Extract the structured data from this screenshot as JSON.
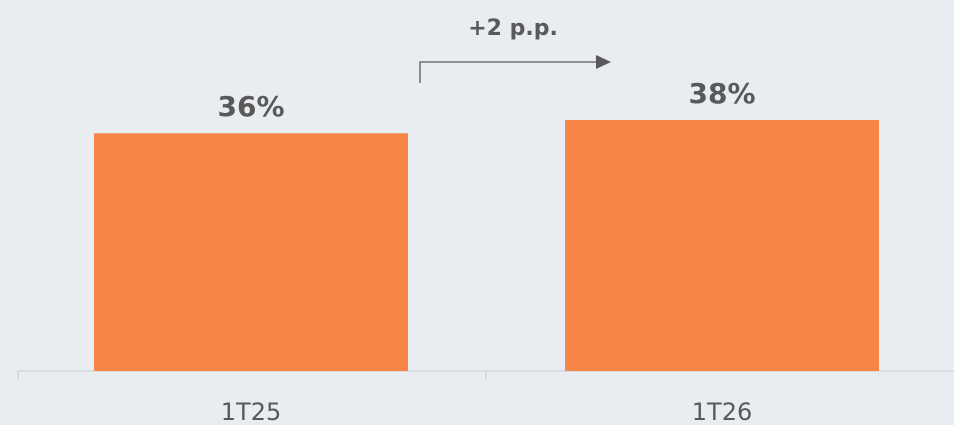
{
  "chart_data": {
    "type": "bar",
    "categories": [
      "1T25",
      "1T26"
    ],
    "values": [
      36,
      38
    ],
    "data_labels": [
      "36%",
      "38%"
    ],
    "annotation": "+2 p.p.",
    "title": "",
    "xlabel": "",
    "ylabel": "",
    "ylim": [
      0,
      40
    ],
    "grid": false,
    "legend": "none"
  },
  "colors": {
    "bar": "#f68647",
    "label_text": "#595959",
    "axis": "#d0d4d9",
    "arrow": "#595959",
    "background": "#e9edf2"
  }
}
